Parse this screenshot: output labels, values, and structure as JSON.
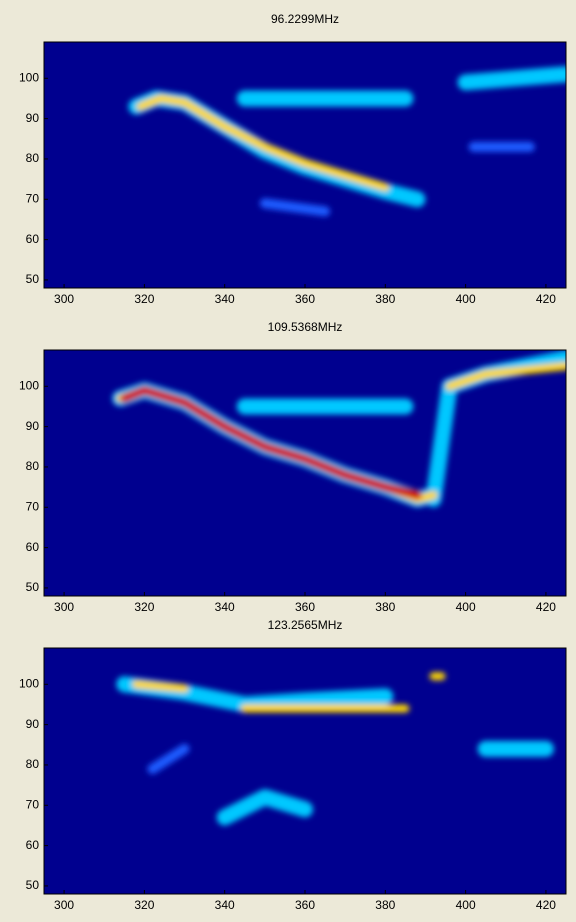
{
  "chart_data": [
    {
      "type": "heatmap",
      "title": "96.2299MHz",
      "background": "#00008f",
      "xlim": [
        295,
        425
      ],
      "ylim": [
        48,
        109
      ],
      "xticks": [
        300,
        320,
        340,
        360,
        380,
        400,
        420
      ],
      "yticks": [
        50,
        60,
        70,
        80,
        90,
        100
      ],
      "series": [
        {
          "color": "#00c8ff",
          "x": [
            318,
            323,
            330,
            340,
            350,
            360,
            370,
            380,
            388
          ],
          "y": [
            93,
            95,
            94,
            88,
            82,
            78,
            75,
            72,
            70
          ]
        },
        {
          "color": "#00c8ff",
          "x": [
            345,
            385
          ],
          "y": [
            95,
            95
          ]
        },
        {
          "color": "#00c8ff",
          "x": [
            400,
            425
          ],
          "y": [
            99,
            101
          ]
        },
        {
          "color": "#1e5cff",
          "x": [
            350,
            365
          ],
          "y": [
            69,
            67
          ]
        },
        {
          "color": "#1e5cff",
          "x": [
            402,
            416
          ],
          "y": [
            83,
            83
          ]
        },
        {
          "color": "#ffd700",
          "x": [
            319,
            324,
            330,
            340,
            350,
            360,
            370,
            380
          ],
          "y": [
            93,
            95,
            94,
            88,
            83,
            79,
            76,
            73
          ]
        }
      ]
    },
    {
      "type": "heatmap",
      "title": "109.5368MHz",
      "background": "#00008f",
      "xlim": [
        295,
        425
      ],
      "ylim": [
        48,
        109
      ],
      "xticks": [
        300,
        320,
        340,
        360,
        380,
        400,
        420
      ],
      "yticks": [
        50,
        60,
        70,
        80,
        90,
        100
      ],
      "series": [
        {
          "color": "#00c8ff",
          "x": [
            314,
            320,
            330,
            340,
            350,
            360,
            370,
            380,
            388,
            392
          ],
          "y": [
            97,
            99,
            96,
            90,
            85,
            82,
            78,
            75,
            72,
            73
          ]
        },
        {
          "color": "#00c8ff",
          "x": [
            392,
            396,
            405,
            425
          ],
          "y": [
            72,
            100,
            103,
            107
          ]
        },
        {
          "color": "#00c8ff",
          "x": [
            345,
            385
          ],
          "y": [
            95,
            95
          ]
        },
        {
          "color": "#ffd700",
          "x": [
            314,
            320,
            330,
            340,
            350,
            360,
            370,
            380,
            388,
            392
          ],
          "y": [
            97,
            99,
            96,
            90,
            85,
            82,
            78,
            75,
            72,
            73
          ]
        },
        {
          "color": "#ffd700",
          "x": [
            396,
            405,
            425
          ],
          "y": [
            100,
            103,
            105
          ]
        },
        {
          "color": "#d00000",
          "x": [
            315,
            320,
            330,
            340,
            350,
            360,
            370,
            380,
            388
          ],
          "y": [
            97,
            99,
            96,
            90,
            85,
            82,
            78,
            75,
            73
          ]
        }
      ]
    },
    {
      "type": "heatmap",
      "title": "123.2565MHz",
      "background": "#00008f",
      "xlim": [
        295,
        425
      ],
      "ylim": [
        48,
        109
      ],
      "xticks": [
        300,
        320,
        340,
        360,
        380,
        400,
        420
      ],
      "yticks": [
        50,
        60,
        70,
        80,
        90,
        100
      ],
      "series": [
        {
          "color": "#00c8ff",
          "x": [
            315,
            330,
            345,
            360,
            380
          ],
          "y": [
            100,
            98,
            95,
            96,
            97
          ]
        },
        {
          "color": "#00c8ff",
          "x": [
            340,
            350,
            360
          ],
          "y": [
            67,
            72,
            69
          ]
        },
        {
          "color": "#00c8ff",
          "x": [
            405,
            420
          ],
          "y": [
            84,
            84
          ]
        },
        {
          "color": "#1e5cff",
          "x": [
            322,
            330
          ],
          "y": [
            79,
            84
          ]
        },
        {
          "color": "#ffd700",
          "x": [
            345,
            385
          ],
          "y": [
            94,
            94
          ]
        },
        {
          "color": "#ffd700",
          "x": [
            318,
            330
          ],
          "y": [
            100,
            99
          ]
        },
        {
          "color": "#ffd700",
          "x": [
            392,
            394
          ],
          "y": [
            102,
            102
          ]
        }
      ]
    }
  ]
}
